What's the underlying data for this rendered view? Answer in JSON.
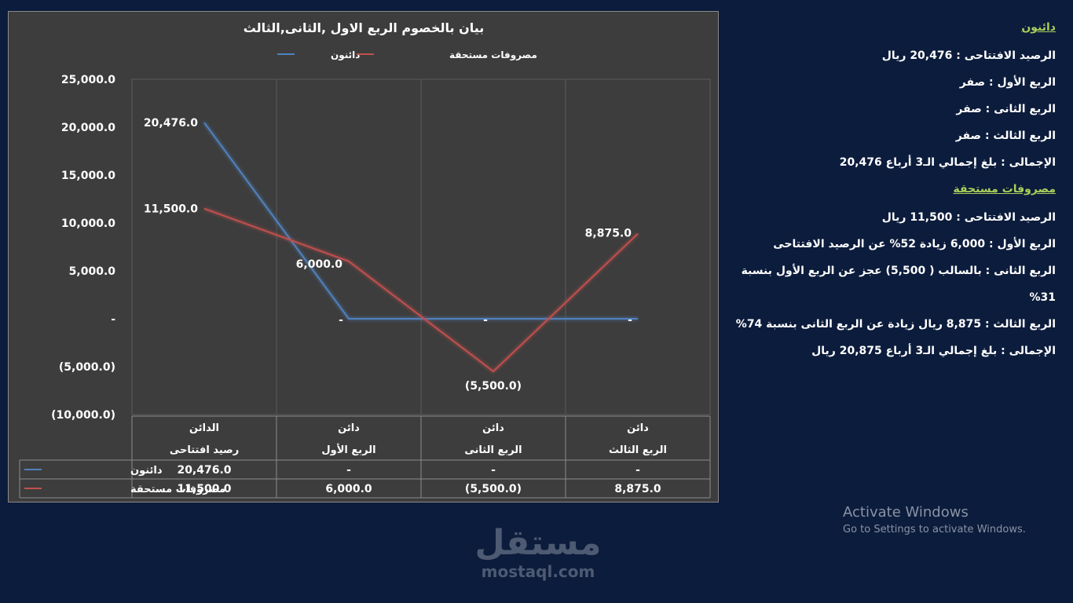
{
  "chart_data": {
    "type": "line",
    "title": "بيان بالخصوم الربع الاول ,الثانى,الثالث",
    "categories": [
      {
        "line1": "الدائن",
        "line2": "رصيد افتتاحى"
      },
      {
        "line1": "دائن",
        "line2": "الربع الأول"
      },
      {
        "line1": "دائن",
        "line2": "الربع الثانى"
      },
      {
        "line1": "دائن",
        "line2": "الربع الثالث"
      }
    ],
    "series": [
      {
        "name": "دائنون",
        "color": "#4f81bd",
        "values": [
          20476,
          0,
          0,
          0
        ],
        "labels": [
          "20,476.0",
          "-",
          "-",
          "-"
        ]
      },
      {
        "name": "مصروفات مستحقة",
        "color": "#c0504d",
        "values": [
          11500,
          6000,
          -5500,
          8875
        ],
        "labels": [
          "11,500.0",
          "6,000.0",
          "(5,500.0)",
          "8,875.0"
        ]
      }
    ],
    "y_ticks": [
      "25,000.0",
      "20,000.0",
      "15,000.0",
      "10,000.0",
      "5,000.0",
      "-",
      "(5,000.0)",
      "(10,000.0)"
    ],
    "ylim": [
      -10000,
      25000
    ],
    "legend_position": "top",
    "grid": true,
    "data_table": true
  },
  "notes": {
    "creditors_heading": "دائنون",
    "creditors_lines": [
      "الرصيد الافتتاحى : 20,476 ريال",
      "الربع الأول : صفر",
      "الربع الثانى : صفر",
      "الربع الثالث : صفر",
      "الإجمالى : بلغ إجمالي الـ3 أرباع 20,476"
    ],
    "expenses_heading": "مصروفات مستحقة",
    "expenses_lines": [
      "الرصيد الافتتاحى : 11,500 ريال",
      "الربع الأول : 6,000 زيادة 52% عن الرصيد الافتتاحى",
      "الربع الثانى : بالسالب ( 5,500) عجز عن الربع الأول بنسبة 31%",
      "الربع الثالث : 8,875 ريال زيادة عن الربع الثانى بنسبة 74%",
      "الإجمالى : بلغ إجمالي الـ3 أرباع 20,875 ريال"
    ]
  },
  "watermark": {
    "title": "Activate Windows",
    "subtitle": "Go to Settings to activate Windows."
  },
  "logo": {
    "arabic": "مستقل",
    "latin": "mostaql.com"
  }
}
